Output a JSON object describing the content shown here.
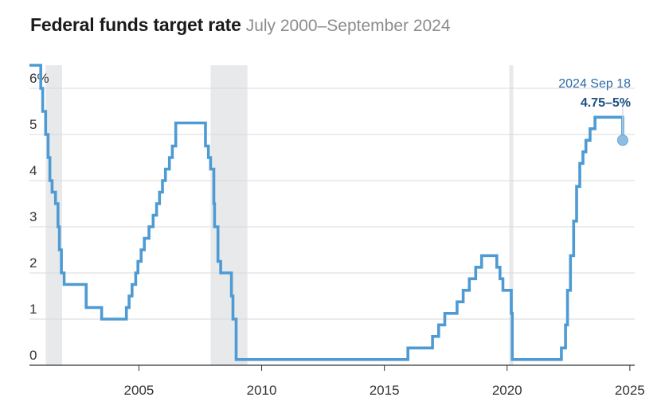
{
  "chart_data": {
    "type": "line",
    "step": true,
    "title": "Federal funds target rate",
    "subtitle": "July 2000–September 2024",
    "y_tick_labels": [
      "0",
      "1",
      "2",
      "3",
      "4",
      "5",
      "6%"
    ],
    "y_ticks": [
      0,
      1,
      2,
      3,
      4,
      5,
      6
    ],
    "x_tick_labels": [
      "2005",
      "2010",
      "2015",
      "2020",
      "2025"
    ],
    "x_ticks": [
      2005,
      2010,
      2015,
      2020,
      2025
    ],
    "xlim": [
      2000.54,
      2025.2
    ],
    "ylim": [
      0,
      6.5
    ],
    "recessions": [
      [
        2001.2,
        2001.87
      ],
      [
        2007.92,
        2009.42
      ],
      [
        2020.09,
        2020.25
      ]
    ],
    "series": [
      {
        "name": "Federal funds target rate",
        "color": "#4e9bd4",
        "points": [
          [
            2000.54,
            6.5
          ],
          [
            2001.0,
            6.5
          ],
          [
            2001.0,
            6.0
          ],
          [
            2001.08,
            5.5
          ],
          [
            2001.2,
            5.0
          ],
          [
            2001.3,
            4.5
          ],
          [
            2001.37,
            4.0
          ],
          [
            2001.46,
            3.75
          ],
          [
            2001.6,
            3.5
          ],
          [
            2001.7,
            3.0
          ],
          [
            2001.76,
            2.5
          ],
          [
            2001.84,
            2.0
          ],
          [
            2001.95,
            1.75
          ],
          [
            2002.85,
            1.25
          ],
          [
            2003.48,
            1.0
          ],
          [
            2004.49,
            1.25
          ],
          [
            2004.6,
            1.5
          ],
          [
            2004.72,
            1.75
          ],
          [
            2004.87,
            2.0
          ],
          [
            2004.96,
            2.25
          ],
          [
            2005.09,
            2.5
          ],
          [
            2005.22,
            2.75
          ],
          [
            2005.41,
            3.0
          ],
          [
            2005.58,
            3.25
          ],
          [
            2005.72,
            3.5
          ],
          [
            2005.84,
            3.75
          ],
          [
            2005.96,
            4.0
          ],
          [
            2006.08,
            4.25
          ],
          [
            2006.24,
            4.5
          ],
          [
            2006.36,
            4.75
          ],
          [
            2006.5,
            5.25
          ],
          [
            2007.71,
            4.75
          ],
          [
            2007.83,
            4.5
          ],
          [
            2007.92,
            4.25
          ],
          [
            2008.05,
            3.5
          ],
          [
            2008.08,
            3.0
          ],
          [
            2008.22,
            2.25
          ],
          [
            2008.33,
            2.0
          ],
          [
            2008.77,
            1.5
          ],
          [
            2008.83,
            1.0
          ],
          [
            2008.96,
            0.125
          ],
          [
            2015.96,
            0.375
          ],
          [
            2016.96,
            0.625
          ],
          [
            2017.21,
            0.875
          ],
          [
            2017.46,
            1.125
          ],
          [
            2017.96,
            1.375
          ],
          [
            2018.21,
            1.625
          ],
          [
            2018.46,
            1.875
          ],
          [
            2018.72,
            2.125
          ],
          [
            2018.96,
            2.375
          ],
          [
            2019.58,
            2.125
          ],
          [
            2019.71,
            1.875
          ],
          [
            2019.83,
            1.625
          ],
          [
            2020.17,
            1.125
          ],
          [
            2020.21,
            0.125
          ],
          [
            2022.21,
            0.375
          ],
          [
            2022.38,
            0.875
          ],
          [
            2022.46,
            1.625
          ],
          [
            2022.58,
            2.375
          ],
          [
            2022.71,
            3.125
          ],
          [
            2022.83,
            3.875
          ],
          [
            2022.96,
            4.375
          ],
          [
            2023.09,
            4.625
          ],
          [
            2023.21,
            4.875
          ],
          [
            2023.38,
            5.125
          ],
          [
            2023.58,
            5.375
          ],
          [
            2024.71,
            5.375
          ],
          [
            2024.71,
            4.875
          ]
        ]
      }
    ],
    "annotation": {
      "date": "2024 Sep 18",
      "value": "4.75–5%",
      "x": 2024.71,
      "y": 4.875
    }
  }
}
